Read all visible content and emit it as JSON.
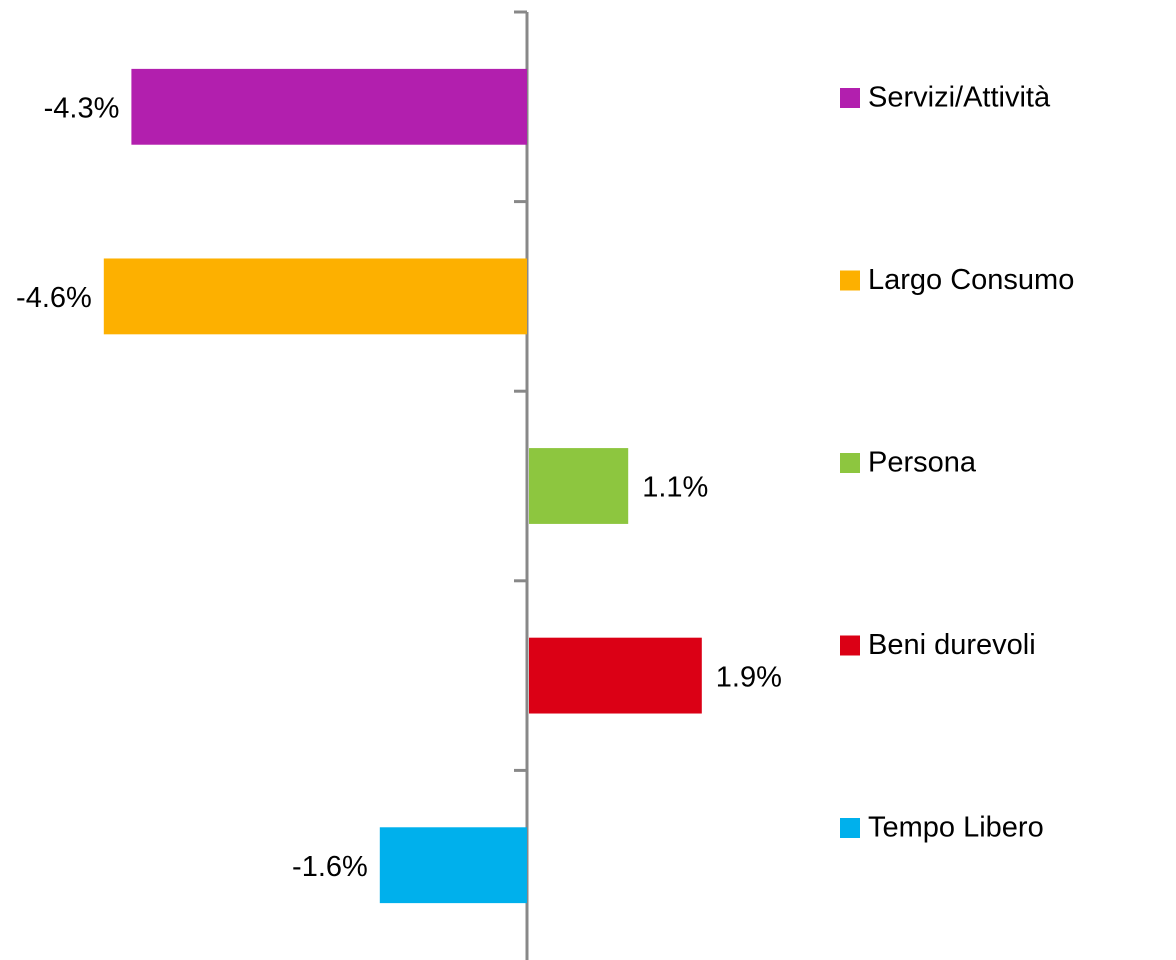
{
  "chart_data": {
    "type": "hbar",
    "categories": [
      "Servizi/Attività",
      "Largo Consumo",
      "Persona",
      "Beni durevoli",
      "Tempo Libero"
    ],
    "values": [
      -4.3,
      -4.6,
      1.1,
      1.9,
      -1.6
    ],
    "value_labels": [
      "-4.3%",
      "-4.6%",
      "1.1%",
      "1.9%",
      "-1.6%"
    ],
    "colors": [
      "#b21fae",
      "#fdb000",
      "#8dc63f",
      "#db0015",
      "#00b0ec"
    ],
    "xlim": [
      -5,
      2.5
    ],
    "legend": "right"
  }
}
